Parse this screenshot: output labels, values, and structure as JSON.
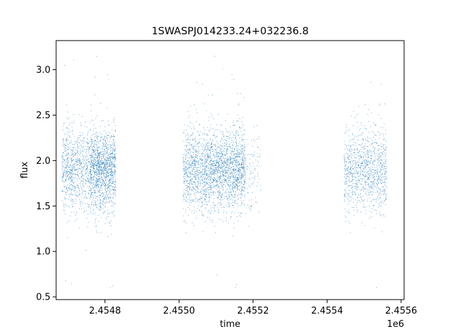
{
  "chart_data": {
    "type": "scatter",
    "title": "1SWASPJ014233.24+032236.8",
    "xlabel": "time",
    "ylabel": "flux",
    "x_offset_label": "1e6",
    "xlim": [
      2454668,
      2455608
    ],
    "ylim": [
      0.47,
      3.32
    ],
    "x_ticks": [
      2454800,
      2455000,
      2455200,
      2455400,
      2455600
    ],
    "x_tick_labels": [
      "2.4548",
      "2.4550",
      "2.4552",
      "2.4554",
      "2.4556"
    ],
    "y_ticks": [
      0.5,
      1.0,
      1.5,
      2.0,
      2.5,
      3.0
    ],
    "y_tick_labels": [
      "0.5",
      "1.0",
      "1.5",
      "2.0",
      "2.5",
      "3.0"
    ],
    "grid": false,
    "marker_color": "#1f77b4",
    "series": [
      {
        "segments": [
          {
            "x_start": 2454683,
            "x_end": 2454720,
            "count": 450
          },
          {
            "x_start": 2454720,
            "x_end": 2454760,
            "count": 400
          },
          {
            "x_start": 2454760,
            "x_end": 2454828,
            "count": 1400
          },
          {
            "x_start": 2455010,
            "x_end": 2455070,
            "count": 750
          },
          {
            "x_start": 2455070,
            "x_end": 2455178,
            "count": 1700
          },
          {
            "x_start": 2455178,
            "x_end": 2455220,
            "count": 100
          },
          {
            "x_start": 2455445,
            "x_end": 2455560,
            "count": 1100
          }
        ],
        "flux_center": 1.9,
        "flux_spread": 0.22,
        "flux_min": 0.6,
        "flux_max": 3.2
      }
    ]
  }
}
